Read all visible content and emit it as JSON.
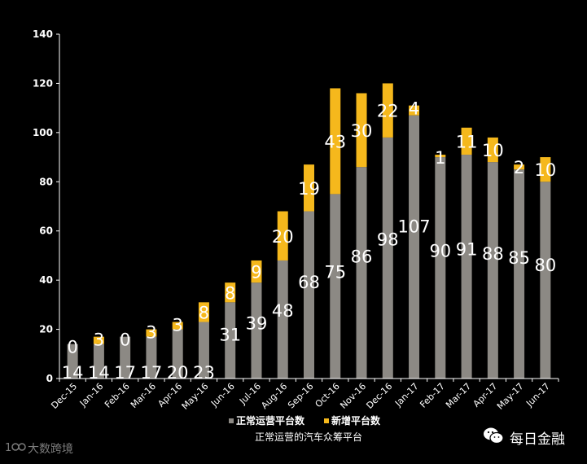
{
  "chart_data": {
    "type": "bar",
    "stacked": true,
    "categories": [
      "Dec-15",
      "Jan-16",
      "Feb-16",
      "Mar-16",
      "Apr-16",
      "May-16",
      "Jun-16",
      "Jul-16",
      "Aug-16",
      "Sep-16",
      "Oct-16",
      "Nov-16",
      "Dec-16",
      "Jan-17",
      "Feb-17",
      "Mar-17",
      "Apr-17",
      "May-17",
      "Jun-17"
    ],
    "series": [
      {
        "name": "正常运营平台数",
        "color": "#8c8984",
        "values": [
          14,
          14,
          17,
          17,
          20,
          23,
          31,
          39,
          48,
          68,
          75,
          86,
          98,
          107,
          90,
          91,
          88,
          85,
          80
        ]
      },
      {
        "name": "新增平台数",
        "color": "#f5b81c",
        "values": [
          0,
          3,
          0,
          3,
          3,
          8,
          8,
          9,
          20,
          19,
          43,
          30,
          22,
          4,
          1,
          11,
          10,
          2,
          10
        ]
      }
    ],
    "ylim": [
      0,
      140
    ],
    "yticks": [
      0,
      20,
      40,
      60,
      80,
      100,
      120,
      140
    ],
    "caption": "正常运营的汽车众筹平台",
    "legend_position": "bottom",
    "grid": false
  },
  "watermarks": {
    "left_text": "大数跨境",
    "left_icon": "logo-100-icon",
    "right_text": "每日金融",
    "right_icon": "wechat-icon"
  }
}
